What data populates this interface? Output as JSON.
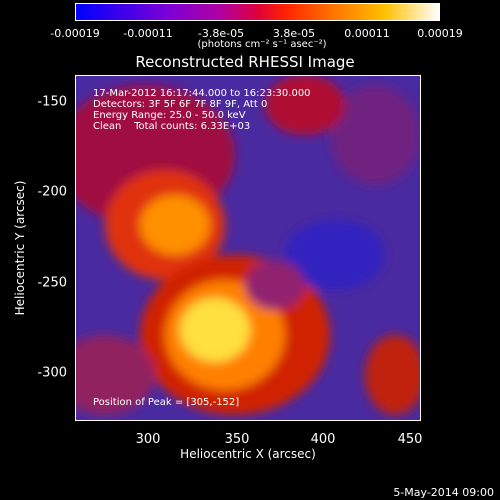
{
  "colorbar": {
    "ticks": [
      "-0.00019",
      "-0.00011",
      "-3.8e-05",
      "3.8e-05",
      "0.00011",
      "0.00019"
    ],
    "units": "(photons cm⁻² s⁻¹ asec⁻²)"
  },
  "image": {
    "title": "Reconstructed RHESSI Image",
    "time_range": "17-Mar-2012 16:17:44.000 to 16:23:30.000",
    "detectors": "Detectors: 3F 5F 6F 7F 8F 9F, Att 0",
    "energy": "Energy Range: 25.0 - 50.0 keV",
    "clean": "Clean    Total counts: 6.33E+03",
    "peak": "Position of Peak = [305,-152]"
  },
  "axes": {
    "xlabel": "Heliocentric X (arcsec)",
    "ylabel": "Heliocentric Y (arcsec)",
    "xticks": [
      "300",
      "350",
      "400",
      "450"
    ],
    "yticks": [
      "-150",
      "-200",
      "-250",
      "-300"
    ]
  },
  "footer": {
    "date": "5-May-2014 09:00"
  },
  "colors": {
    "low": "#3020c0",
    "mid": "#d02000",
    "high": "#ffff80"
  }
}
